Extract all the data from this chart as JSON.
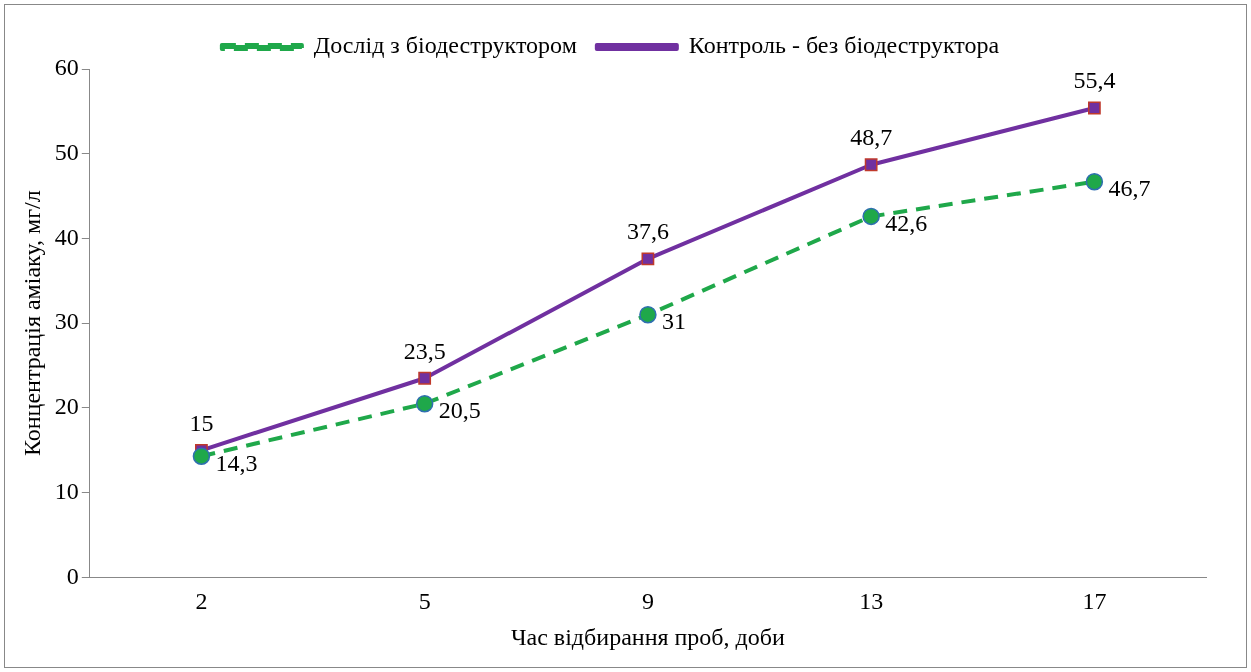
{
  "chart_data": {
    "type": "line",
    "xlabel": "Час відбирання проб, доби",
    "ylabel": "Концентрація аміаку, мг/л",
    "categories": [
      "2",
      "5",
      "9",
      "13",
      "17"
    ],
    "series": [
      {
        "name": "Дослід з біодеструктором",
        "color": "#1fa84a",
        "values": [
          14.3,
          20.5,
          31,
          42.6,
          46.7
        ],
        "value_labels": [
          "14,3",
          "20,5",
          "31",
          "42,6",
          "46,7"
        ],
        "marker": "circle",
        "line_style": "dashed"
      },
      {
        "name": "Контроль - без біодеструктора",
        "color": "#7030a0",
        "values": [
          15,
          23.5,
          37.6,
          48.7,
          55.4
        ],
        "value_labels": [
          "15",
          "23,5",
          "37,6",
          "48,7",
          "55,4"
        ],
        "marker": "square",
        "line_style": "solid"
      }
    ],
    "ylim": [
      0,
      60
    ],
    "yticks": [
      0,
      10,
      20,
      30,
      40,
      50,
      60
    ],
    "grid": false,
    "legend": "top"
  }
}
